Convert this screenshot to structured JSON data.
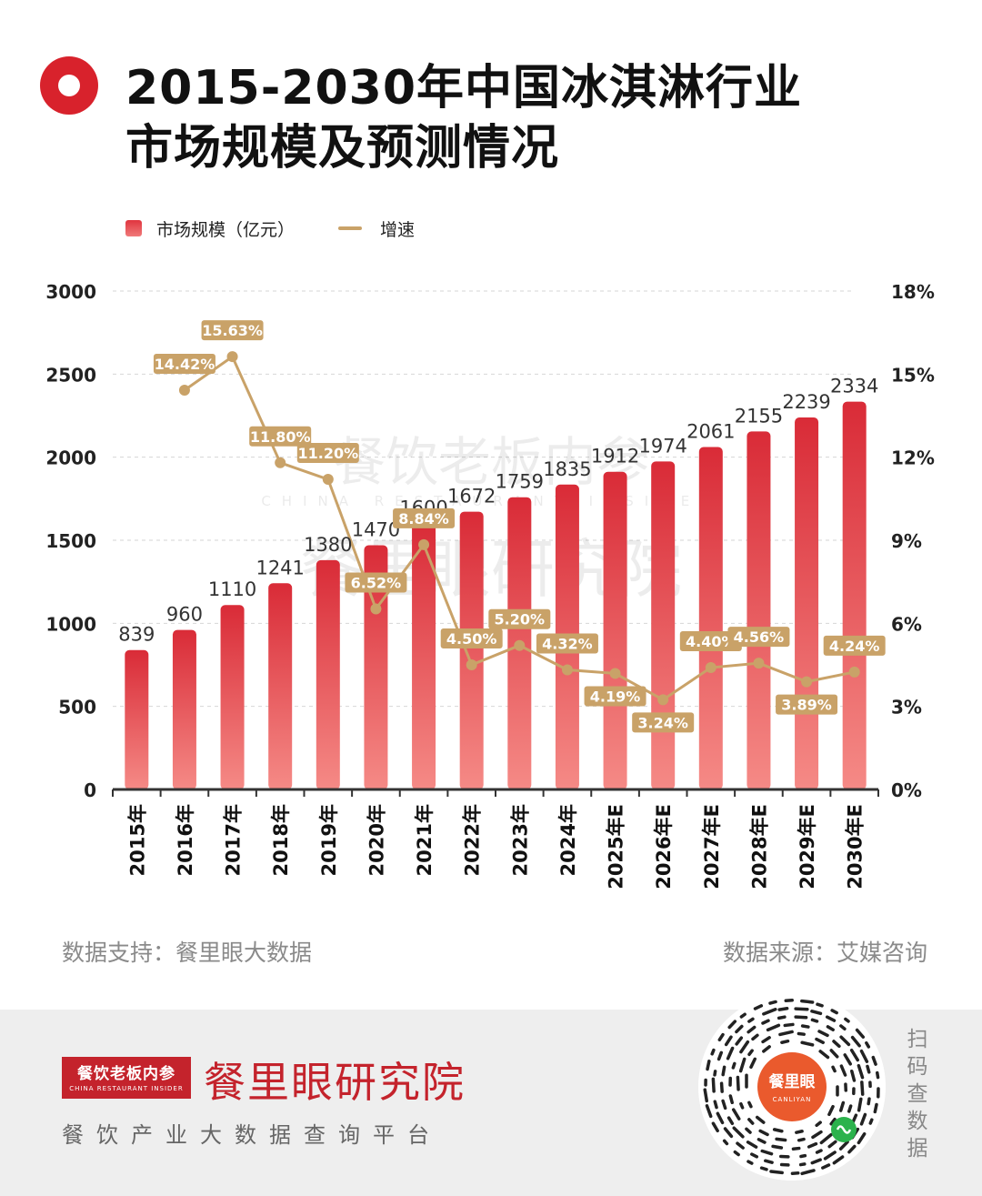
{
  "header": {
    "title_line1": "2015-2030年中国冰淇淋行业",
    "title_line2": "市场规模及预测情况"
  },
  "colors": {
    "bar_top": "#d92b37",
    "bar_bottom": "#f58a86",
    "line": "#c9a268",
    "brand": "#c4232c",
    "icon": "#d8222c"
  },
  "chart_data": {
    "type": "bar+line",
    "categories": [
      "2015年",
      "2016年",
      "2017年",
      "2018年",
      "2019年",
      "2020年",
      "2021年",
      "2022年",
      "2023年",
      "2024年",
      "2025年E",
      "2026年E",
      "2027年E",
      "2028年E",
      "2029年E",
      "2030年E"
    ],
    "series": [
      {
        "name": "市场规模（亿元）",
        "type": "bar",
        "axis": "left",
        "values": [
          839,
          960,
          1110,
          1241,
          1380,
          1470,
          1600,
          1672,
          1759,
          1835,
          1912,
          1974,
          2061,
          2155,
          2239,
          2334
        ]
      },
      {
        "name": "增速",
        "type": "line",
        "axis": "right",
        "values": [
          null,
          14.42,
          15.63,
          11.8,
          11.2,
          6.52,
          8.84,
          4.5,
          5.2,
          4.32,
          4.19,
          3.24,
          4.4,
          4.56,
          3.89,
          4.24
        ],
        "labels": [
          "",
          "14.42%",
          "15.63%",
          "11.80%",
          "11.20%",
          "6.52%",
          "8.84%",
          "4.50%",
          "5.20%",
          "4.32%",
          "4.19%",
          "3.24%",
          "4.40%",
          "4.56%",
          "3.89%",
          "4.24%"
        ]
      }
    ],
    "y_left": {
      "ticks": [
        "0",
        "500",
        "1000",
        "1500",
        "2000",
        "2500",
        "3000"
      ],
      "range": [
        0,
        3000
      ]
    },
    "y_right": {
      "ticks": [
        "0%",
        "3%",
        "6%",
        "9%",
        "12%",
        "15%",
        "18%"
      ],
      "range": [
        0,
        18
      ]
    },
    "grid": true,
    "legend_placement": "top-left"
  },
  "watermark": {
    "main": "餐饮老板内参",
    "en": "CHINA RESTAURANT INSIDER",
    "sub": "餐里眼研究院"
  },
  "footer": {
    "support": "数据支持：餐里眼大数据",
    "source": "数据来源：艾媒咨询"
  },
  "brand": {
    "box_main": "餐饮老板内参",
    "box_en": "CHINA RESTAURANT INSIDER",
    "name": "餐里眼研究院",
    "tagline": "餐饮产业大数据查询平台",
    "qr_label": "餐里眼",
    "qr_en": "CANLIYAN",
    "scan": [
      "扫",
      "码",
      "查",
      "数",
      "据"
    ]
  },
  "legend": {
    "bar_label": "市场规模（亿元）",
    "line_label": "增速"
  }
}
